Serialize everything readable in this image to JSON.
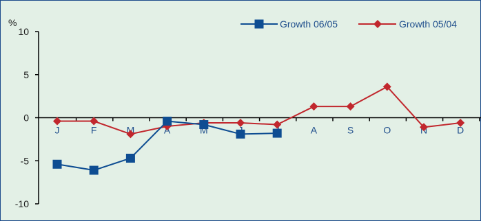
{
  "chart_data": {
    "type": "line",
    "ylabel": "%",
    "ylim": [
      -10,
      10
    ],
    "yticks": [
      10,
      5,
      0,
      -5,
      -10
    ],
    "categories": [
      "J",
      "F",
      "M",
      "A",
      "M",
      "J",
      "J",
      "A",
      "S",
      "O",
      "N",
      "D"
    ],
    "legend_position": "top-right",
    "grid": false,
    "series": [
      {
        "name": "Growth 06/05",
        "color": "#0e4d92",
        "marker": "square",
        "values": [
          -5.4,
          -6.1,
          -4.7,
          -0.4,
          -0.8,
          -1.9,
          -1.8,
          null,
          null,
          null,
          null,
          null
        ]
      },
      {
        "name": "Growth 05/04",
        "color": "#c1272d",
        "marker": "diamond",
        "values": [
          -0.4,
          -0.4,
          -1.9,
          -1.0,
          -0.6,
          -0.6,
          -0.8,
          1.3,
          1.3,
          3.6,
          -1.1,
          -0.6
        ]
      }
    ]
  }
}
